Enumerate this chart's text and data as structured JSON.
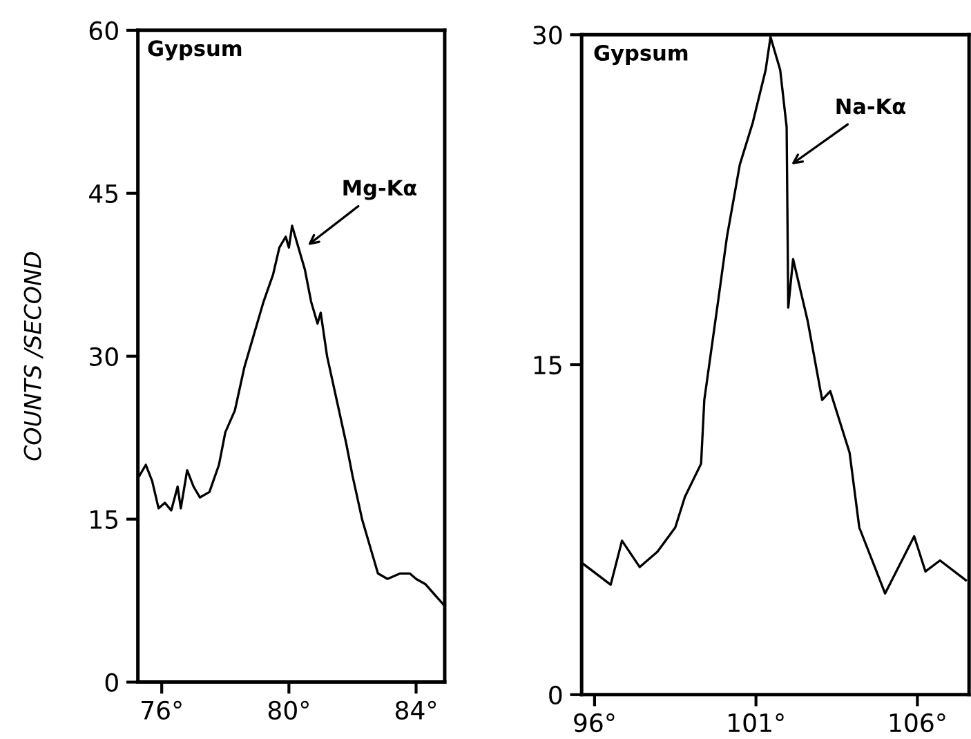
{
  "chart_data": [
    {
      "type": "line",
      "ylabel": "COUNTS /SECOND",
      "annotations": [
        "Gypsum",
        {
          "text": "Mg-Kα",
          "x": 80.5,
          "y": 40
        }
      ],
      "xlim": [
        75.25,
        84.9
      ],
      "ylim": [
        0,
        60
      ],
      "xticks": [
        {
          "value": 76,
          "label": "76°"
        },
        {
          "value": 80,
          "label": "80°"
        },
        {
          "value": 84,
          "label": "84°"
        }
      ],
      "yticks": [
        0,
        15,
        30,
        45,
        60
      ],
      "series": [
        {
          "color": "#000000",
          "x": [
            75.3,
            75.5,
            75.7,
            75.9,
            76.1,
            76.3,
            76.5,
            76.6,
            76.8,
            77.0,
            77.2,
            77.5,
            77.8,
            78.0,
            78.3,
            78.6,
            78.9,
            79.2,
            79.5,
            79.7,
            79.9,
            80.0,
            80.1,
            80.3,
            80.5,
            80.7,
            80.9,
            81.0,
            81.2,
            81.5,
            81.8,
            82.0,
            82.3,
            82.6,
            82.8,
            83.1,
            83.5,
            83.8,
            84.0,
            84.3,
            84.6,
            84.9
          ],
          "values": [
            19,
            20,
            18.5,
            16,
            16.5,
            15.8,
            18,
            16,
            19.5,
            18,
            17,
            17.5,
            20,
            23,
            25,
            29,
            32,
            35,
            37.5,
            40,
            41,
            40,
            42,
            40,
            38,
            35,
            33,
            34,
            30,
            26,
            22,
            19,
            15,
            12,
            10,
            9.5,
            10,
            10,
            9.5,
            9,
            8,
            7
          ]
        }
      ]
    },
    {
      "type": "line",
      "annotations": [
        "Gypsum",
        {
          "text": "Na-Kα",
          "x": 102.0,
          "y": 24
        }
      ],
      "xlim": [
        95.6,
        107.6
      ],
      "ylim": [
        0,
        30
      ],
      "xticks": [
        {
          "value": 96,
          "label": "96°"
        },
        {
          "value": 101,
          "label": "101°"
        },
        {
          "value": 106,
          "label": "106°"
        }
      ],
      "yticks": [
        0,
        15,
        30
      ],
      "series": [
        {
          "color": "#000000",
          "x": [
            95.6,
            96.5,
            96.85,
            97.4,
            97.95,
            98.5,
            98.8,
            99.3,
            99.4,
            99.8,
            100.1,
            100.5,
            100.9,
            101.3,
            101.45,
            101.75,
            101.95,
            102.0,
            102.15,
            102.6,
            103.05,
            103.3,
            103.9,
            104.2,
            105.0,
            105.9,
            106.25,
            106.7,
            107.5
          ],
          "values": [
            6,
            5,
            7,
            5.8,
            6.5,
            7.6,
            9,
            10.5,
            13.4,
            17.6,
            20.8,
            24.1,
            26,
            28.4,
            29.9,
            28.4,
            25.8,
            17.6,
            19.8,
            17,
            13.4,
            13.8,
            11,
            7.6,
            4.6,
            7.2,
            5.6,
            6.1,
            5.2
          ]
        }
      ]
    }
  ]
}
